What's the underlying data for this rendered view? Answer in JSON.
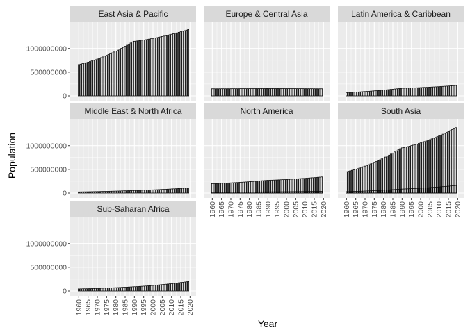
{
  "chart_data": {
    "type": "bar",
    "xlabel": "Year",
    "ylabel": "Population",
    "ylim": [
      0,
      1450000000
    ],
    "y_ticks": [
      0,
      500000000,
      1000000000
    ],
    "y_tick_labels": [
      "0",
      "500000000",
      "1000000000"
    ],
    "x_range": [
      1958,
      2021
    ],
    "x_ticks": [
      1960,
      1965,
      1970,
      1975,
      1980,
      1985,
      1990,
      1995,
      2000,
      2005,
      2010,
      2015,
      2020
    ],
    "x_tick_labels": [
      "1960",
      "1965",
      "1970",
      "1975",
      "1980",
      "1985",
      "1990",
      "1995",
      "2000",
      "2005",
      "2010",
      "2015",
      "2020"
    ],
    "panel_background": "#ebebeb",
    "strip_background": "#d9d9d9",
    "grid_color": "#ffffff",
    "bar_color": "#000000",
    "panels": [
      {
        "name": "East Asia & Pacific",
        "series": [
          {
            "start": 660000000,
            "mid": 1150000000,
            "end": 1400000000
          }
        ]
      },
      {
        "name": "Europe & Central Asia",
        "series": [
          {
            "start": 150000000,
            "mid": 155000000,
            "end": 150000000
          }
        ]
      },
      {
        "name": "Latin America & Caribbean",
        "series": [
          {
            "start": 70000000,
            "mid": 160000000,
            "end": 220000000
          }
        ]
      },
      {
        "name": "Middle East & North Africa",
        "series": [
          {
            "start": 25000000,
            "mid": 55000000,
            "end": 110000000
          }
        ]
      },
      {
        "name": "North America",
        "series": [
          {
            "start": 200000000,
            "mid": 270000000,
            "end": 340000000
          },
          {
            "start": 18000000,
            "mid": 26000000,
            "end": 37000000
          }
        ]
      },
      {
        "name": "South Asia",
        "series": [
          {
            "start": 450000000,
            "mid": 950000000,
            "end": 1380000000
          },
          {
            "start": 30000000,
            "mid": 85000000,
            "end": 160000000
          }
        ]
      },
      {
        "name": "Sub-Saharan Africa",
        "series": [
          {
            "start": 45000000,
            "mid": 90000000,
            "end": 200000000
          }
        ]
      }
    ]
  }
}
